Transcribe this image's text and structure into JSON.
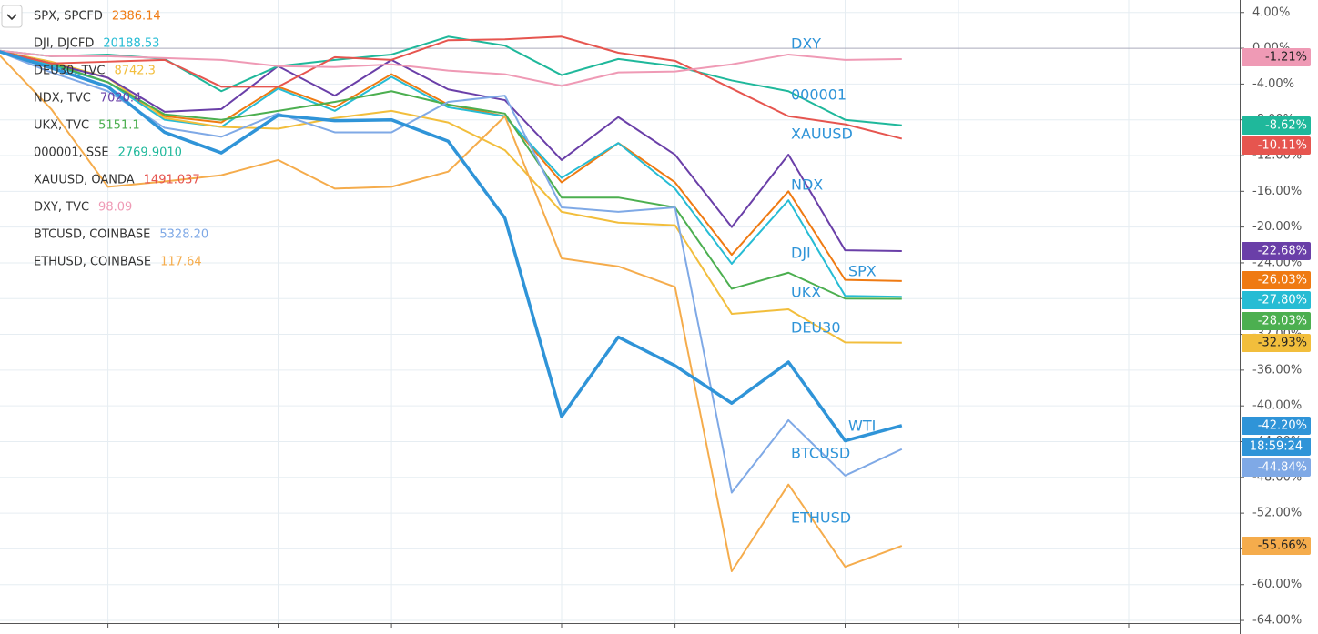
{
  "chart_data": {
    "type": "line",
    "categories": [
      null,
      null,
      null,
      null,
      null,
      null,
      null,
      null,
      null,
      null,
      null,
      null,
      null,
      null,
      null,
      null,
      null
    ],
    "ylim": [
      -64.3,
      5.4
    ],
    "yticks": [
      {
        "value": 4,
        "label": "4.00%"
      },
      {
        "value": 0,
        "label": "0.00%"
      },
      {
        "value": -4,
        "label": "-4.00%"
      },
      {
        "value": -8,
        "label": "-8.00%"
      },
      {
        "value": -12,
        "label": "-12.00%"
      },
      {
        "value": -16,
        "label": "-16.00%"
      },
      {
        "value": -20,
        "label": "-20.00%"
      },
      {
        "value": -24,
        "label": "-24.00%"
      },
      {
        "value": -28,
        "label": "-28.00%"
      },
      {
        "value": -32,
        "label": "-32.00%"
      },
      {
        "value": -36,
        "label": "-36.00%"
      },
      {
        "value": -40,
        "label": "-40.00%"
      },
      {
        "value": -44,
        "label": "-44.00%"
      },
      {
        "value": -48,
        "label": "-48.00%"
      },
      {
        "value": -52,
        "label": "-52.00%"
      },
      {
        "value": -56,
        "label": "-56.00%"
      },
      {
        "value": -60,
        "label": "-60.00%"
      },
      {
        "value": -64,
        "label": "-64.00%"
      }
    ],
    "grid": true,
    "countdown": "18:59:24",
    "series": [
      {
        "name": "SPX",
        "symbol": "SPX, SPCFD",
        "price": "2386.14",
        "color": "#ef7a12",
        "end_label": "-26.03%",
        "values": [
          -0.2,
          -1.9,
          -3.8,
          -7.6,
          -8.3,
          -4.3,
          -6.6,
          -2.9,
          -6.3,
          -7.6,
          -15.0,
          -10.6,
          -15.0,
          -23.1,
          -16.0,
          -25.9,
          -26.03
        ]
      },
      {
        "name": "DJI",
        "symbol": "DJI, DJCFD",
        "price": "20188.53",
        "color": "#26bcd4",
        "end_label": "-27.80%",
        "values": [
          -0.2,
          -1.9,
          -3.8,
          -8.0,
          -8.8,
          -4.5,
          -7.0,
          -3.2,
          -6.6,
          -7.6,
          -14.5,
          -10.6,
          -15.7,
          -24.1,
          -17.0,
          -27.7,
          -27.8
        ]
      },
      {
        "name": "DEU30",
        "symbol": "DEU30, TVC",
        "price": "8742.3",
        "color": "#f2be3c",
        "end_label": "-32.93%",
        "values": [
          -0.2,
          -1.5,
          -3.3,
          -7.8,
          -8.8,
          -9.0,
          -7.8,
          -7.0,
          -8.3,
          -11.4,
          -18.3,
          -19.5,
          -19.8,
          -29.7,
          -29.2,
          -32.9,
          -32.93
        ]
      },
      {
        "name": "NDX",
        "symbol": "NDX, TVC",
        "price": "7020.4",
        "color": "#6a3fa8",
        "end_label": "-22.68%",
        "values": [
          -0.2,
          -1.7,
          -3.3,
          -7.1,
          -6.8,
          -2.0,
          -5.3,
          -1.3,
          -4.6,
          -5.8,
          -12.5,
          -7.7,
          -11.9,
          -20.0,
          -11.9,
          -22.6,
          -22.68
        ]
      },
      {
        "name": "UKX",
        "symbol": "UKX, TVC",
        "price": "5151.1",
        "color": "#4caf50",
        "end_label": "-28.03%",
        "values": [
          -0.2,
          -1.7,
          -3.8,
          -7.4,
          -8.0,
          -7.0,
          -6.0,
          -4.8,
          -6.3,
          -7.3,
          -16.7,
          -16.7,
          -17.8,
          -26.9,
          -25.1,
          -28.0,
          -28.03
        ]
      },
      {
        "name": "000001",
        "symbol": "000001, SSE",
        "price": "2769.9010",
        "color": "#1fb89b",
        "end_label": "-8.62%",
        "values": [
          -0.2,
          -0.9,
          -0.7,
          -1.2,
          -4.8,
          -2.0,
          -1.3,
          -0.7,
          1.3,
          0.3,
          -3.0,
          -1.2,
          -2.0,
          -3.6,
          -4.8,
          -8.0,
          -8.62
        ]
      },
      {
        "name": "XAUUSD",
        "symbol": "XAUUSD, OANDA",
        "price": "1491.037",
        "color": "#e6554f",
        "end_label": "-10.11%",
        "values": [
          -0.2,
          -1.7,
          -1.5,
          -1.3,
          -4.3,
          -4.3,
          -1.0,
          -1.3,
          0.9,
          1.0,
          1.3,
          -0.5,
          -1.4,
          -4.5,
          -7.6,
          -8.5,
          -10.11
        ]
      },
      {
        "name": "DXY",
        "symbol": "DXY, TVC",
        "price": "98.09",
        "color": "#ef9ab5",
        "end_label": "-1.21%",
        "values": [
          -0.2,
          -0.9,
          -0.9,
          -1.1,
          -1.3,
          -2.0,
          -2.1,
          -1.8,
          -2.5,
          -2.9,
          -4.2,
          -2.7,
          -2.6,
          -1.8,
          -0.7,
          -1.3,
          -1.21
        ]
      },
      {
        "name": "BTCUSD",
        "symbol": "BTCUSD, COINBASE",
        "price": "5328.20",
        "color": "#7fa9e6",
        "end_label": "-44.84%",
        "values": [
          -0.2,
          -2.7,
          -4.8,
          -8.9,
          -9.9,
          -7.3,
          -9.4,
          -9.4,
          -6.0,
          -5.3,
          -17.8,
          -18.3,
          -17.8,
          -49.7,
          -41.6,
          -47.8,
          -44.84
        ]
      },
      {
        "name": "ETHUSD",
        "symbol": "ETHUSD, COINBASE",
        "price": "117.64",
        "color": "#f5ac4c",
        "end_label": "-55.66%",
        "values": [
          -0.2,
          -6.8,
          -15.5,
          -14.9,
          -14.2,
          -12.5,
          -15.7,
          -15.5,
          -13.8,
          -7.6,
          -23.5,
          -24.4,
          -26.7,
          -58.5,
          -48.8,
          -58.0,
          -55.66
        ]
      },
      {
        "name": "WTI",
        "color": "#2f94d8",
        "end_label": "-42.20%",
        "values": [
          -0.2,
          -2.2,
          -4.3,
          -9.4,
          -11.7,
          -7.5,
          -8.1,
          -8.0,
          -10.4,
          -19.0,
          -41.2,
          -32.3,
          -35.5,
          -39.7,
          -35.1,
          -43.9,
          -42.2
        ]
      }
    ]
  }
}
